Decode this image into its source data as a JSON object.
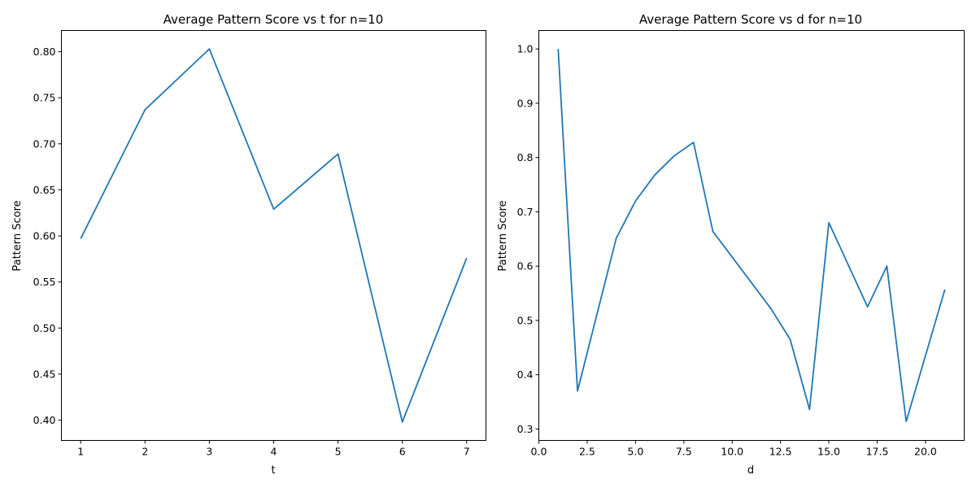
{
  "chart_data": [
    {
      "type": "line",
      "title": "Average Pattern Score vs t for n=10",
      "xlabel": "t",
      "ylabel": "Pattern Score",
      "x": [
        1,
        2,
        3,
        4,
        5,
        6,
        7
      ],
      "series": [
        {
          "values": [
            0.597,
            0.737,
            0.803,
            0.629,
            0.689,
            0.398,
            0.576
          ]
        }
      ],
      "xlim": [
        0.7,
        7.3
      ],
      "ylim": [
        0.378,
        0.823
      ],
      "xticks": [
        1,
        2,
        3,
        4,
        5,
        6,
        7
      ],
      "xtick_labels": [
        "1",
        "2",
        "3",
        "4",
        "5",
        "6",
        "7"
      ],
      "yticks": [
        0.4,
        0.45,
        0.5,
        0.55,
        0.6,
        0.65,
        0.7,
        0.75,
        0.8
      ],
      "ytick_labels": [
        "0.40",
        "0.45",
        "0.50",
        "0.55",
        "0.60",
        "0.65",
        "0.70",
        "0.75",
        "0.80"
      ],
      "grid": false,
      "color": "#1f77b4"
    },
    {
      "type": "line",
      "title": "Average Pattern Score vs d for n=10",
      "xlabel": "d",
      "ylabel": "Pattern Score",
      "x": [
        1,
        2,
        4,
        5,
        6,
        7,
        8,
        9,
        12,
        13,
        14,
        15,
        17,
        18,
        19,
        21
      ],
      "series": [
        {
          "values": [
            1.0,
            0.37,
            0.651,
            0.72,
            0.768,
            0.803,
            0.828,
            0.664,
            0.522,
            0.465,
            0.336,
            0.68,
            0.525,
            0.6,
            0.314,
            0.557
          ]
        }
      ],
      "xlim": [
        0.0,
        22.0
      ],
      "ylim": [
        0.279,
        1.034
      ],
      "xticks": [
        0.0,
        2.5,
        5.0,
        7.5,
        10.0,
        12.5,
        15.0,
        17.5,
        20.0
      ],
      "xtick_labels": [
        "0.0",
        "2.5",
        "5.0",
        "7.5",
        "10.0",
        "12.5",
        "15.0",
        "17.5",
        "20.0"
      ],
      "yticks": [
        0.3,
        0.4,
        0.5,
        0.6,
        0.7,
        0.8,
        0.9,
        1.0
      ],
      "ytick_labels": [
        "0.3",
        "0.4",
        "0.5",
        "0.6",
        "0.7",
        "0.8",
        "0.9",
        "1.0"
      ],
      "grid": false,
      "color": "#1f77b4"
    }
  ]
}
